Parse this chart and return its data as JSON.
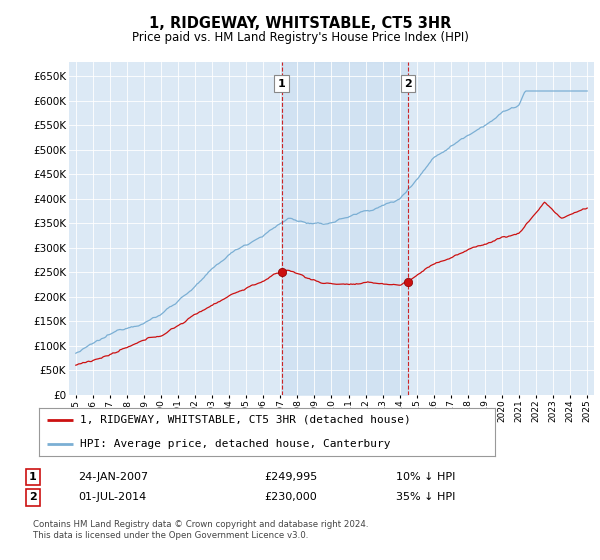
{
  "title": "1, RIDGEWAY, WHITSTABLE, CT5 3HR",
  "subtitle": "Price paid vs. HM Land Registry's House Price Index (HPI)",
  "ytick_values": [
    0,
    50000,
    100000,
    150000,
    200000,
    250000,
    300000,
    350000,
    400000,
    450000,
    500000,
    550000,
    600000,
    650000
  ],
  "sale1_date_x": 2007.07,
  "sale1_price": 249995,
  "sale1_label": "1",
  "sale2_date_x": 2014.5,
  "sale2_price": 230000,
  "sale2_label": "2",
  "legend_line1": "1, RIDGEWAY, WHITSTABLE, CT5 3HR (detached house)",
  "legend_line2": "HPI: Average price, detached house, Canterbury",
  "table_row1": [
    "1",
    "24-JAN-2007",
    "£249,995",
    "10% ↓ HPI"
  ],
  "table_row2": [
    "2",
    "01-JUL-2014",
    "£230,000",
    "35% ↓ HPI"
  ],
  "footer": "Contains HM Land Registry data © Crown copyright and database right 2024.\nThis data is licensed under the Open Government Licence v3.0.",
  "hpi_color": "#7bafd4",
  "hpi_fill_color": "#c8ddf0",
  "price_color": "#cc1111",
  "vline_color": "#cc1111",
  "background_chart": "#dce9f5",
  "xmin": 1994.6,
  "xmax": 2025.4,
  "ymin": 0,
  "ymax": 680000
}
